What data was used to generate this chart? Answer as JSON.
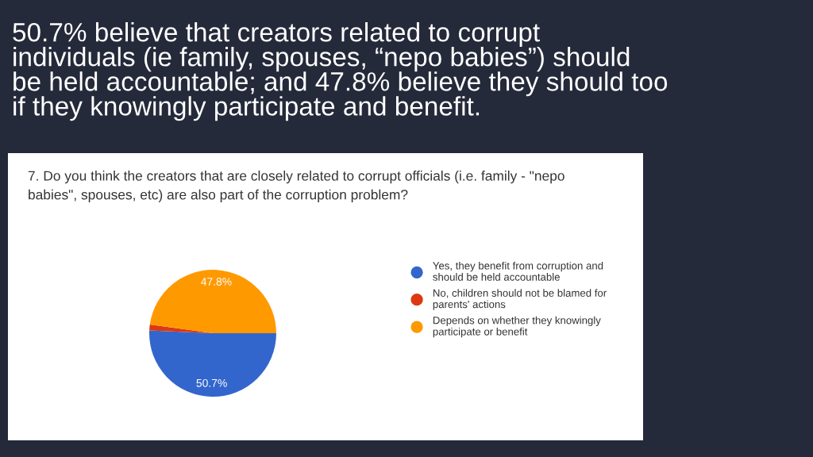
{
  "chart_data": {
    "type": "pie",
    "title": "50.7% believe that creators related to corrupt individuals (ie family, spouses, “nepo babies”) should be held accountable; and 47.8% believe they should too if they knowingly participate and benefit.",
    "subtitle": "7. Do you think the creators that are closely related to corrupt officials (i.e. family - \"nepo babies\", spouses, etc) are also part of the corruption problem?",
    "categories": [
      "Yes, they benefit from corruption and should be held accountable",
      "No, children should not be blamed for parents' actions",
      "Depends on whether they knowingly participate or benefit"
    ],
    "values": [
      50.7,
      1.5,
      47.8
    ],
    "value_labels": [
      "50.7%",
      null,
      "47.8%"
    ],
    "colors": [
      "#3366cc",
      "#dc3912",
      "#ff9900"
    ],
    "legend": "right"
  }
}
